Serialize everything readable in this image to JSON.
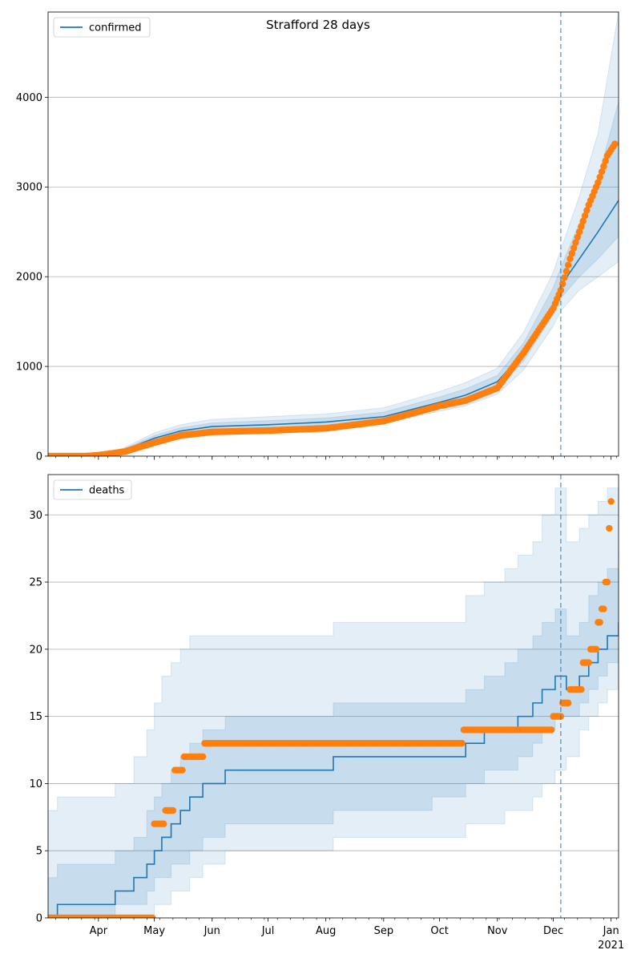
{
  "title": "Strafford 28 days",
  "colors": {
    "line": "#1f77b4",
    "points": "#ff7f0e",
    "band": "#1f77b4",
    "grid": "#b0b0b0",
    "vline": "#1f77b4"
  },
  "x_axis": {
    "month_labels": [
      "Apr",
      "May",
      "Jun",
      "Jul",
      "Aug",
      "Sep",
      "Oct",
      "Nov",
      "Dec",
      "Jan"
    ],
    "year_label": "2021"
  },
  "chart_data": [
    {
      "type": "line",
      "name": "confirmed",
      "legend": "confirmed",
      "legend_position": "upper left",
      "grid": "horizontal",
      "ylim": [
        0,
        4950
      ],
      "yticks": [
        0,
        1000,
        2000,
        3000,
        4000
      ],
      "xlim": [
        "2020-03-05",
        "2021-01-05"
      ],
      "forecast_start": "2020-12-05",
      "x": [
        "2020-03-05",
        "2020-04-01",
        "2020-04-15",
        "2020-05-01",
        "2020-05-15",
        "2020-06-01",
        "2020-07-01",
        "2020-08-01",
        "2020-09-01",
        "2020-10-01",
        "2020-10-15",
        "2020-11-01",
        "2020-11-15",
        "2020-12-01",
        "2020-12-05",
        "2020-12-15",
        "2020-12-25",
        "2021-01-05"
      ],
      "median": [
        0,
        5,
        70,
        200,
        280,
        330,
        350,
        380,
        440,
        600,
        680,
        830,
        1150,
        1700,
        1900,
        2200,
        2500,
        2850
      ],
      "band_outer_low": [
        0,
        0,
        50,
        150,
        220,
        270,
        290,
        310,
        370,
        500,
        560,
        690,
        960,
        1450,
        1620,
        1850,
        2000,
        2170
      ],
      "band_outer_high": [
        0,
        10,
        95,
        260,
        350,
        410,
        440,
        470,
        540,
        720,
        820,
        980,
        1380,
        2050,
        2300,
        2900,
        3600,
        4950
      ],
      "band_mid_low": [
        0,
        2,
        60,
        175,
        250,
        300,
        320,
        345,
        405,
        550,
        620,
        760,
        1060,
        1580,
        1760,
        2000,
        2200,
        2450
      ],
      "band_mid_high": [
        0,
        7,
        82,
        230,
        315,
        370,
        395,
        425,
        490,
        660,
        750,
        900,
        1260,
        1880,
        2100,
        2600,
        3100,
        3950
      ],
      "observed_x": [
        "2020-03-05",
        "2020-03-25",
        "2020-04-01",
        "2020-04-15",
        "2020-05-01",
        "2020-05-15",
        "2020-06-01",
        "2020-07-01",
        "2020-08-01",
        "2020-09-01",
        "2020-10-01",
        "2020-10-15",
        "2020-11-01",
        "2020-11-15",
        "2020-12-01",
        "2020-12-05",
        "2020-12-10",
        "2020-12-15",
        "2020-12-20",
        "2020-12-25",
        "2020-12-30",
        "2021-01-03"
      ],
      "observed": [
        0,
        0,
        10,
        50,
        150,
        230,
        270,
        285,
        310,
        390,
        560,
        620,
        760,
        1150,
        1650,
        1850,
        2200,
        2500,
        2800,
        3050,
        3350,
        3480
      ]
    },
    {
      "type": "line",
      "name": "deaths",
      "legend": "deaths",
      "legend_position": "upper left",
      "grid": "horizontal",
      "ylim": [
        0,
        33
      ],
      "yticks": [
        0,
        5,
        10,
        15,
        20,
        25,
        30
      ],
      "xlim": [
        "2020-03-05",
        "2021-01-05"
      ],
      "forecast_start": "2020-12-05",
      "x": [
        "2020-03-05",
        "2020-03-10",
        "2020-04-10",
        "2020-04-20",
        "2020-04-27",
        "2020-05-01",
        "2020-05-05",
        "2020-05-10",
        "2020-05-15",
        "2020-05-20",
        "2020-05-27",
        "2020-06-08",
        "2020-08-05",
        "2020-09-27",
        "2020-10-15",
        "2020-10-25",
        "2020-11-05",
        "2020-11-12",
        "2020-11-20",
        "2020-11-25",
        "2020-12-02",
        "2020-12-08",
        "2020-12-15",
        "2020-12-20",
        "2020-12-25",
        "2020-12-30",
        "2021-01-05"
      ],
      "median": [
        0,
        1,
        2,
        3,
        4,
        5,
        6,
        7,
        8,
        9,
        10,
        11,
        12,
        12,
        13,
        14,
        14,
        15,
        16,
        17,
        18,
        17,
        18,
        19,
        20,
        21,
        22
      ],
      "band_outer_low": [
        0,
        0,
        0,
        0,
        0,
        1,
        1,
        2,
        2,
        3,
        4,
        5,
        6,
        6,
        7,
        7,
        8,
        8,
        9,
        10,
        11,
        12,
        14,
        15,
        16,
        17,
        17
      ],
      "band_outer_high": [
        8,
        9,
        10,
        12,
        14,
        16,
        18,
        19,
        20,
        21,
        21,
        21,
        22,
        22,
        24,
        25,
        26,
        27,
        28,
        30,
        32,
        28,
        29,
        30,
        31,
        32,
        32
      ],
      "band_mid_low": [
        0,
        0,
        1,
        1,
        2,
        3,
        3,
        4,
        4,
        5,
        6,
        7,
        8,
        9,
        10,
        11,
        11,
        12,
        13,
        14,
        15,
        15,
        16,
        17,
        18,
        19,
        20
      ],
      "band_mid_high": [
        3,
        4,
        5,
        6,
        8,
        9,
        10,
        11,
        12,
        13,
        14,
        15,
        16,
        16,
        17,
        18,
        19,
        20,
        21,
        22,
        23,
        21,
        22,
        24,
        25,
        26,
        27
      ],
      "observed_x": [
        "2020-03-05",
        "2020-04-30",
        "2020-05-01",
        "2020-05-07",
        "2020-05-12",
        "2020-05-17",
        "2020-05-24",
        "2020-05-28",
        "2020-10-14",
        "2020-11-24",
        "2020-12-01",
        "2020-12-06",
        "2020-12-10",
        "2020-12-17",
        "2020-12-21",
        "2020-12-25",
        "2020-12-27",
        "2020-12-29",
        "2020-12-31",
        "2021-01-01"
      ],
      "observed": [
        0,
        0,
        7,
        8,
        11,
        12,
        12,
        13,
        14,
        14,
        15,
        16,
        17,
        19,
        20,
        22,
        23,
        25,
        29,
        31
      ]
    }
  ]
}
